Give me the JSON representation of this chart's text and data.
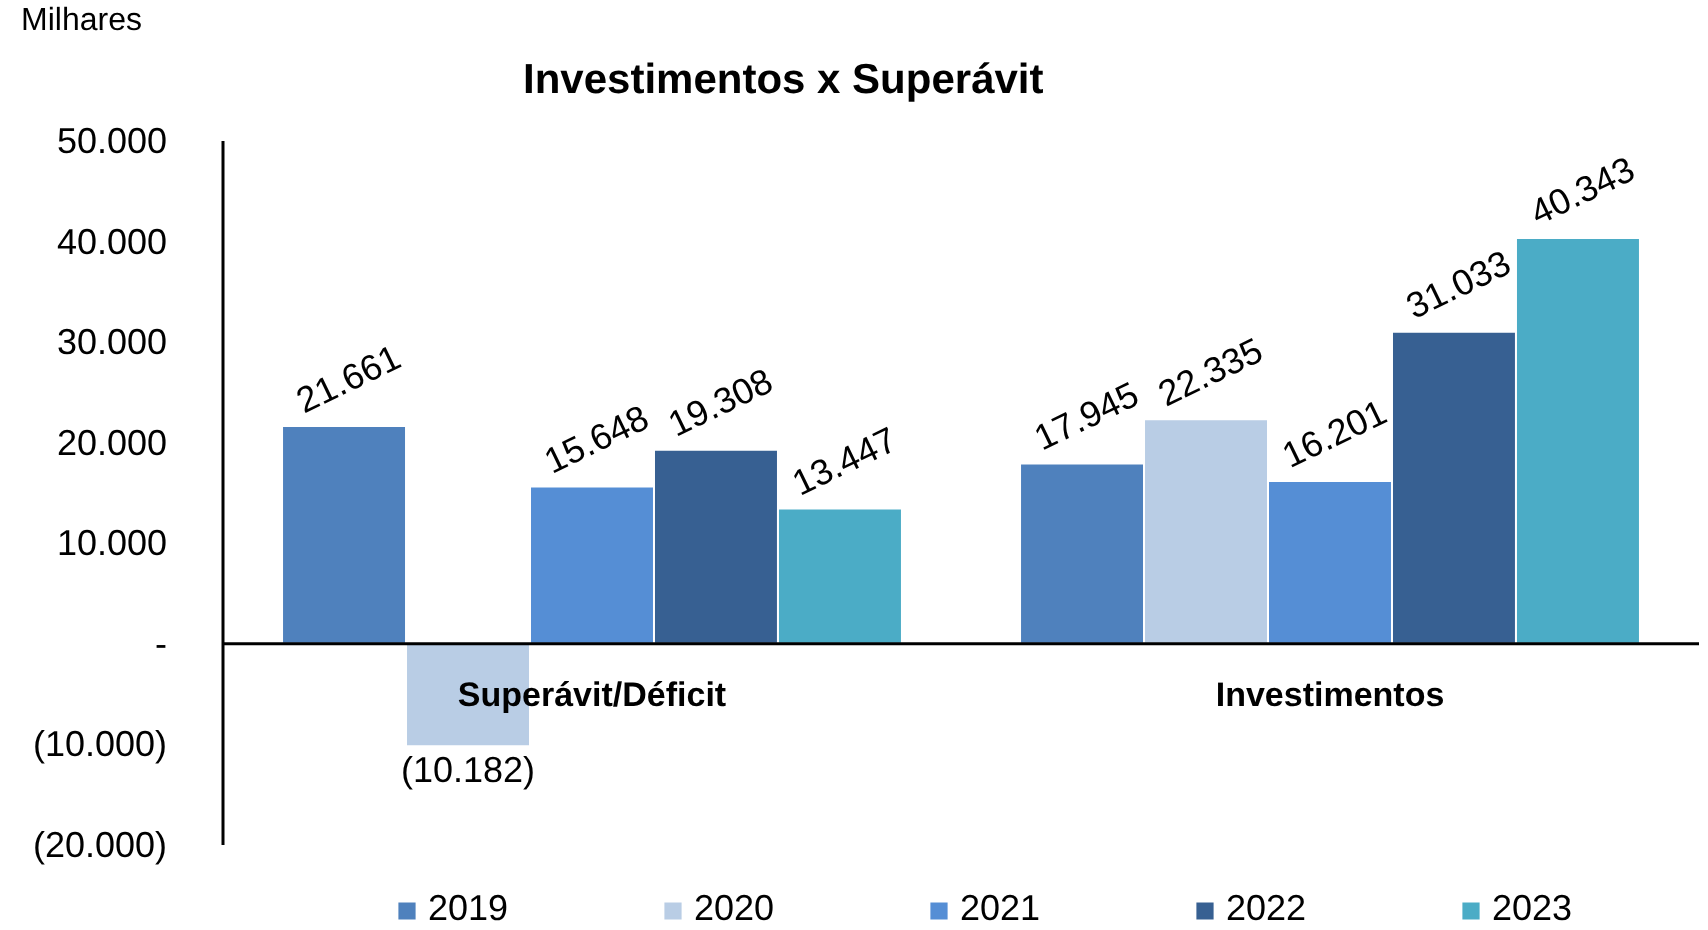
{
  "chart_data": {
    "type": "bar",
    "title": "Investimentos x Superávit",
    "ylabel": "Milhares",
    "categories": [
      "Superávit/Déficit",
      "Investimentos"
    ],
    "series": [
      {
        "name": "2019",
        "color": "#4f81bd",
        "values": [
          21661,
          17945
        ],
        "value_labels": [
          "21.661",
          "17.945"
        ]
      },
      {
        "name": "2020",
        "color": "#b9cde5",
        "values": [
          -10182,
          22335
        ],
        "value_labels": [
          "(10.182)",
          "22.335"
        ]
      },
      {
        "name": "2021",
        "color": "#558ed5",
        "values": [
          15648,
          16201
        ],
        "value_labels": [
          "15.648",
          "16.201"
        ]
      },
      {
        "name": "2022",
        "color": "#376092",
        "values": [
          19308,
          31033
        ],
        "value_labels": [
          "19.308",
          "31.033"
        ]
      },
      {
        "name": "2023",
        "color": "#4bacc6",
        "values": [
          13447,
          40343
        ],
        "value_labels": [
          "13.447",
          "40.343"
        ]
      }
    ],
    "ylim": [
      -20000,
      50000
    ],
    "yticks": [
      {
        "value": -20000,
        "label": "(20.000)"
      },
      {
        "value": -10000,
        "label": "(10.000)"
      },
      {
        "value": 0,
        "label": "-"
      },
      {
        "value": 10000,
        "label": "10.000"
      },
      {
        "value": 20000,
        "label": "20.000"
      },
      {
        "value": 30000,
        "label": "30.000"
      },
      {
        "value": 40000,
        "label": "40.000"
      },
      {
        "value": 50000,
        "label": "50.000"
      }
    ],
    "legend": "bottom"
  }
}
